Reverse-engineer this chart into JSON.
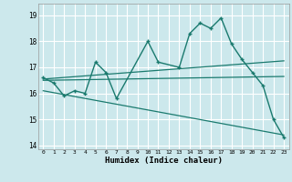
{
  "xlabel": "Humidex (Indice chaleur)",
  "bg_color": "#cce8ec",
  "grid_color": "#ffffff",
  "line_color": "#1a7a6e",
  "xlim": [
    -0.5,
    23.5
  ],
  "ylim": [
    13.85,
    19.45
  ],
  "yticks": [
    14,
    15,
    16,
    17,
    18,
    19
  ],
  "xticks": [
    0,
    1,
    2,
    3,
    4,
    5,
    6,
    7,
    8,
    9,
    10,
    11,
    12,
    13,
    14,
    15,
    16,
    17,
    18,
    19,
    20,
    21,
    22,
    23
  ],
  "line1_x": [
    0,
    1,
    2,
    3,
    4,
    5,
    6,
    7,
    10,
    11,
    13,
    14,
    15,
    16,
    17,
    18,
    19,
    20,
    21,
    22,
    23
  ],
  "line1_y": [
    16.6,
    16.4,
    15.9,
    16.1,
    16.0,
    17.2,
    16.8,
    15.8,
    18.0,
    17.2,
    17.0,
    18.3,
    18.7,
    18.5,
    18.9,
    17.9,
    17.3,
    16.8,
    16.3,
    15.0,
    14.3
  ],
  "line2_x": [
    0,
    23
  ],
  "line2_y": [
    16.55,
    17.25
  ],
  "line3_x": [
    0,
    23
  ],
  "line3_y": [
    16.5,
    16.65
  ],
  "line4_x": [
    0,
    23
  ],
  "line4_y": [
    16.1,
    14.4
  ]
}
